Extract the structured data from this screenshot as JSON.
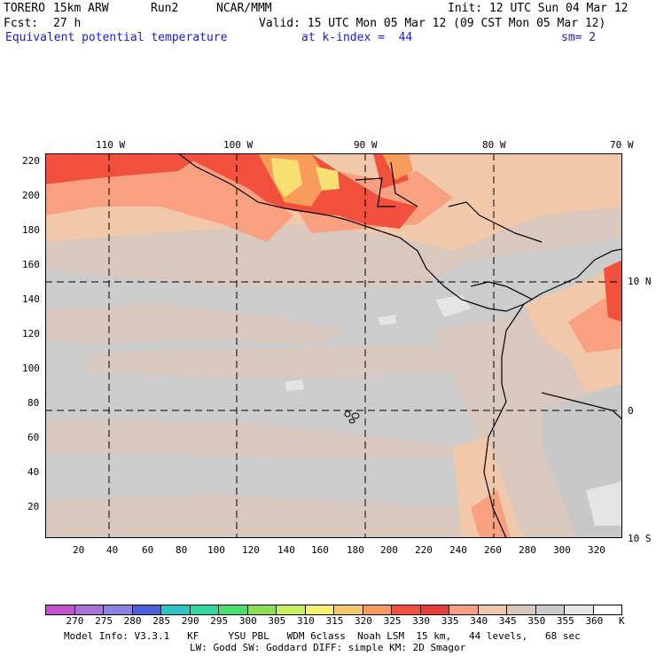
{
  "header": {
    "model": "TORERO",
    "resolution": "15km ARW",
    "run": "Run2",
    "org": "NCAR/MMM",
    "init": "Init: 12 UTC Sun 04 Mar 12",
    "fcst_label": "Fcst:",
    "fcst_value": "27 h",
    "valid": "Valid: 15 UTC Mon 05 Mar 12 (09 CST Mon 05 Mar 12)"
  },
  "subtitle": {
    "field": "Equivalent potential temperature",
    "level": "at k-index =  44",
    "smooth": "sm= 2"
  },
  "map": {
    "lon_labels_top": [
      "110 W",
      "100 W",
      "90 W",
      "80 W",
      "70 W"
    ],
    "lat_labels_right": [
      "10 N",
      "0",
      "10 S"
    ],
    "y_grid_labels": [
      "220",
      "200",
      "180",
      "160",
      "140",
      "120",
      "100",
      "80",
      "60",
      "40",
      "20"
    ],
    "x_grid_labels": [
      "20",
      "40",
      "60",
      "80",
      "100",
      "120",
      "140",
      "160",
      "180",
      "200",
      "220",
      "240",
      "260",
      "280",
      "300",
      "320"
    ]
  },
  "colorbar": {
    "unit": "K",
    "levels": [
      "270",
      "275",
      "280",
      "285",
      "290",
      "295",
      "300",
      "305",
      "310",
      "315",
      "320",
      "325",
      "330",
      "335",
      "340",
      "345",
      "350",
      "355",
      "360"
    ],
    "colors": [
      "#c84fd0",
      "#a970dc",
      "#8a80e8",
      "#4a5ee0",
      "#2ec4c4",
      "#2ed8a0",
      "#44e070",
      "#8ae050",
      "#c8f060",
      "#f8f070",
      "#f8c870",
      "#f89c5c",
      "#f0503c",
      "#e63c3c",
      "#f8a080",
      "#f2c8aa",
      "#d8c8be",
      "#cccccc",
      "#e6e6e6",
      "#ffffff"
    ]
  },
  "footer": {
    "line1": "Model Info: V3.3.1   KF     YSU PBL   WDM 6class  Noah LSM  15 km,   44 levels,   68 sec",
    "line2": "LW: Godd SW: Goddard DIFF: simple KM: 2D Smagor"
  }
}
